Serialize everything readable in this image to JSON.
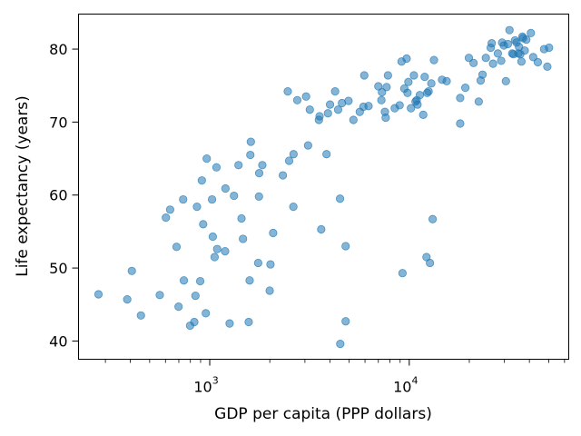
{
  "chart_data": {
    "type": "scatter",
    "title": "",
    "xlabel": "GDP per capita (PPP dollars)",
    "ylabel": "Life expectancy (years)",
    "xscale": "log",
    "xlim": [
      220,
      63000
    ],
    "ylim": [
      37.5,
      84.8
    ],
    "x_major_ticks": [
      {
        "value": 1000,
        "base": "10",
        "exp": "3"
      },
      {
        "value": 10000,
        "base": "10",
        "exp": "4"
      }
    ],
    "y_ticks": [
      40,
      50,
      60,
      70,
      80
    ],
    "grid": false,
    "legend": "none",
    "marker_color": "#1f77b4",
    "marker_alpha": 0.55,
    "points": [
      [
        277,
        46.4
      ],
      [
        386,
        45.7
      ],
      [
        407,
        49.6
      ],
      [
        452,
        43.5
      ],
      [
        562,
        46.3
      ],
      [
        603,
        56.9
      ],
      [
        633,
        58.0
      ],
      [
        682,
        52.9
      ],
      [
        698,
        44.7
      ],
      [
        736,
        59.4
      ],
      [
        742,
        48.3
      ],
      [
        797,
        42.1
      ],
      [
        837,
        42.6
      ],
      [
        848,
        46.2
      ],
      [
        863,
        58.4
      ],
      [
        896,
        48.2
      ],
      [
        913,
        62.0
      ],
      [
        927,
        56.0
      ],
      [
        956,
        43.8
      ],
      [
        966,
        65.0
      ],
      [
        1027,
        59.4
      ],
      [
        1036,
        54.3
      ],
      [
        1058,
        51.5
      ],
      [
        1081,
        63.8
      ],
      [
        1090,
        52.6
      ],
      [
        1194,
        52.3
      ],
      [
        1199,
        60.9
      ],
      [
        1258,
        42.4
      ],
      [
        1323,
        59.9
      ],
      [
        1394,
        64.1
      ],
      [
        1443,
        56.8
      ],
      [
        1468,
        54.0
      ],
      [
        1568,
        42.6
      ],
      [
        1585,
        48.3
      ],
      [
        1598,
        65.5
      ],
      [
        1607,
        67.3
      ],
      [
        1749,
        50.7
      ],
      [
        1765,
        59.8
      ],
      [
        1770,
        63.0
      ],
      [
        1835,
        64.1
      ],
      [
        1998,
        46.9
      ],
      [
        2016,
        50.5
      ],
      [
        2079,
        54.8
      ],
      [
        2326,
        62.7
      ],
      [
        2461,
        74.2
      ],
      [
        2500,
        64.7
      ],
      [
        2625,
        58.4
      ],
      [
        2631,
        65.6
      ],
      [
        2746,
        73.0
      ],
      [
        3040,
        73.5
      ],
      [
        3111,
        66.8
      ],
      [
        3174,
        71.7
      ],
      [
        3526,
        70.3
      ],
      [
        3553,
        70.8
      ],
      [
        3621,
        55.3
      ],
      [
        3850,
        65.6
      ],
      [
        3913,
        71.2
      ],
      [
        4009,
        72.4
      ],
      [
        4250,
        74.2
      ],
      [
        4400,
        71.7
      ],
      [
        4499,
        59.5
      ],
      [
        4511,
        39.6
      ],
      [
        4600,
        72.6
      ],
      [
        4800,
        42.7
      ],
      [
        4800,
        53.0
      ],
      [
        4960,
        72.9
      ],
      [
        5250,
        70.3
      ],
      [
        5650,
        71.4
      ],
      [
        5889,
        72.1
      ],
      [
        5950,
        76.4
      ],
      [
        6250,
        72.2
      ],
      [
        7000,
        74.9
      ],
      [
        7250,
        73.0
      ],
      [
        7300,
        74.1
      ],
      [
        7550,
        71.4
      ],
      [
        7620,
        70.6
      ],
      [
        7700,
        74.8
      ],
      [
        7820,
        76.4
      ],
      [
        8460,
        71.9
      ],
      [
        8950,
        72.3
      ],
      [
        9150,
        78.3
      ],
      [
        9250,
        49.3
      ],
      [
        9450,
        74.6
      ],
      [
        9700,
        78.7
      ],
      [
        9800,
        74.0
      ],
      [
        9900,
        75.5
      ],
      [
        10200,
        71.9
      ],
      [
        10550,
        76.4
      ],
      [
        10750,
        72.8
      ],
      [
        10900,
        73.0
      ],
      [
        11000,
        72.4
      ],
      [
        11300,
        73.7
      ],
      [
        11750,
        71.0
      ],
      [
        11950,
        76.2
      ],
      [
        12200,
        51.5
      ],
      [
        12300,
        74.0
      ],
      [
        12500,
        74.2
      ],
      [
        12700,
        50.7
      ],
      [
        12900,
        75.3
      ],
      [
        13100,
        56.7
      ],
      [
        13300,
        78.5
      ],
      [
        14600,
        75.8
      ],
      [
        15400,
        75.6
      ],
      [
        18000,
        73.3
      ],
      [
        18000,
        69.8
      ],
      [
        19100,
        74.7
      ],
      [
        19900,
        78.8
      ],
      [
        21000,
        78.1
      ],
      [
        22300,
        72.8
      ],
      [
        22800,
        75.7
      ],
      [
        23300,
        76.5
      ],
      [
        24200,
        78.8
      ],
      [
        25600,
        80.2
      ],
      [
        25900,
        80.8
      ],
      [
        26300,
        78.0
      ],
      [
        27800,
        79.4
      ],
      [
        28900,
        78.4
      ],
      [
        29200,
        80.9
      ],
      [
        29800,
        80.5
      ],
      [
        30500,
        75.6
      ],
      [
        31200,
        80.7
      ],
      [
        31800,
        82.6
      ],
      [
        32800,
        79.4
      ],
      [
        33300,
        79.3
      ],
      [
        33900,
        81.2
      ],
      [
        34500,
        80.9
      ],
      [
        35200,
        79.4
      ],
      [
        35500,
        80.3
      ],
      [
        36000,
        79.3
      ],
      [
        36500,
        78.3
      ],
      [
        36900,
        81.7
      ],
      [
        37200,
        81.5
      ],
      [
        37900,
        79.8
      ],
      [
        38600,
        81.3
      ],
      [
        40700,
        82.2
      ],
      [
        41800,
        78.9
      ],
      [
        44100,
        78.2
      ],
      [
        47400,
        80.0
      ],
      [
        49200,
        77.6
      ],
      [
        50200,
        80.2
      ]
    ]
  }
}
